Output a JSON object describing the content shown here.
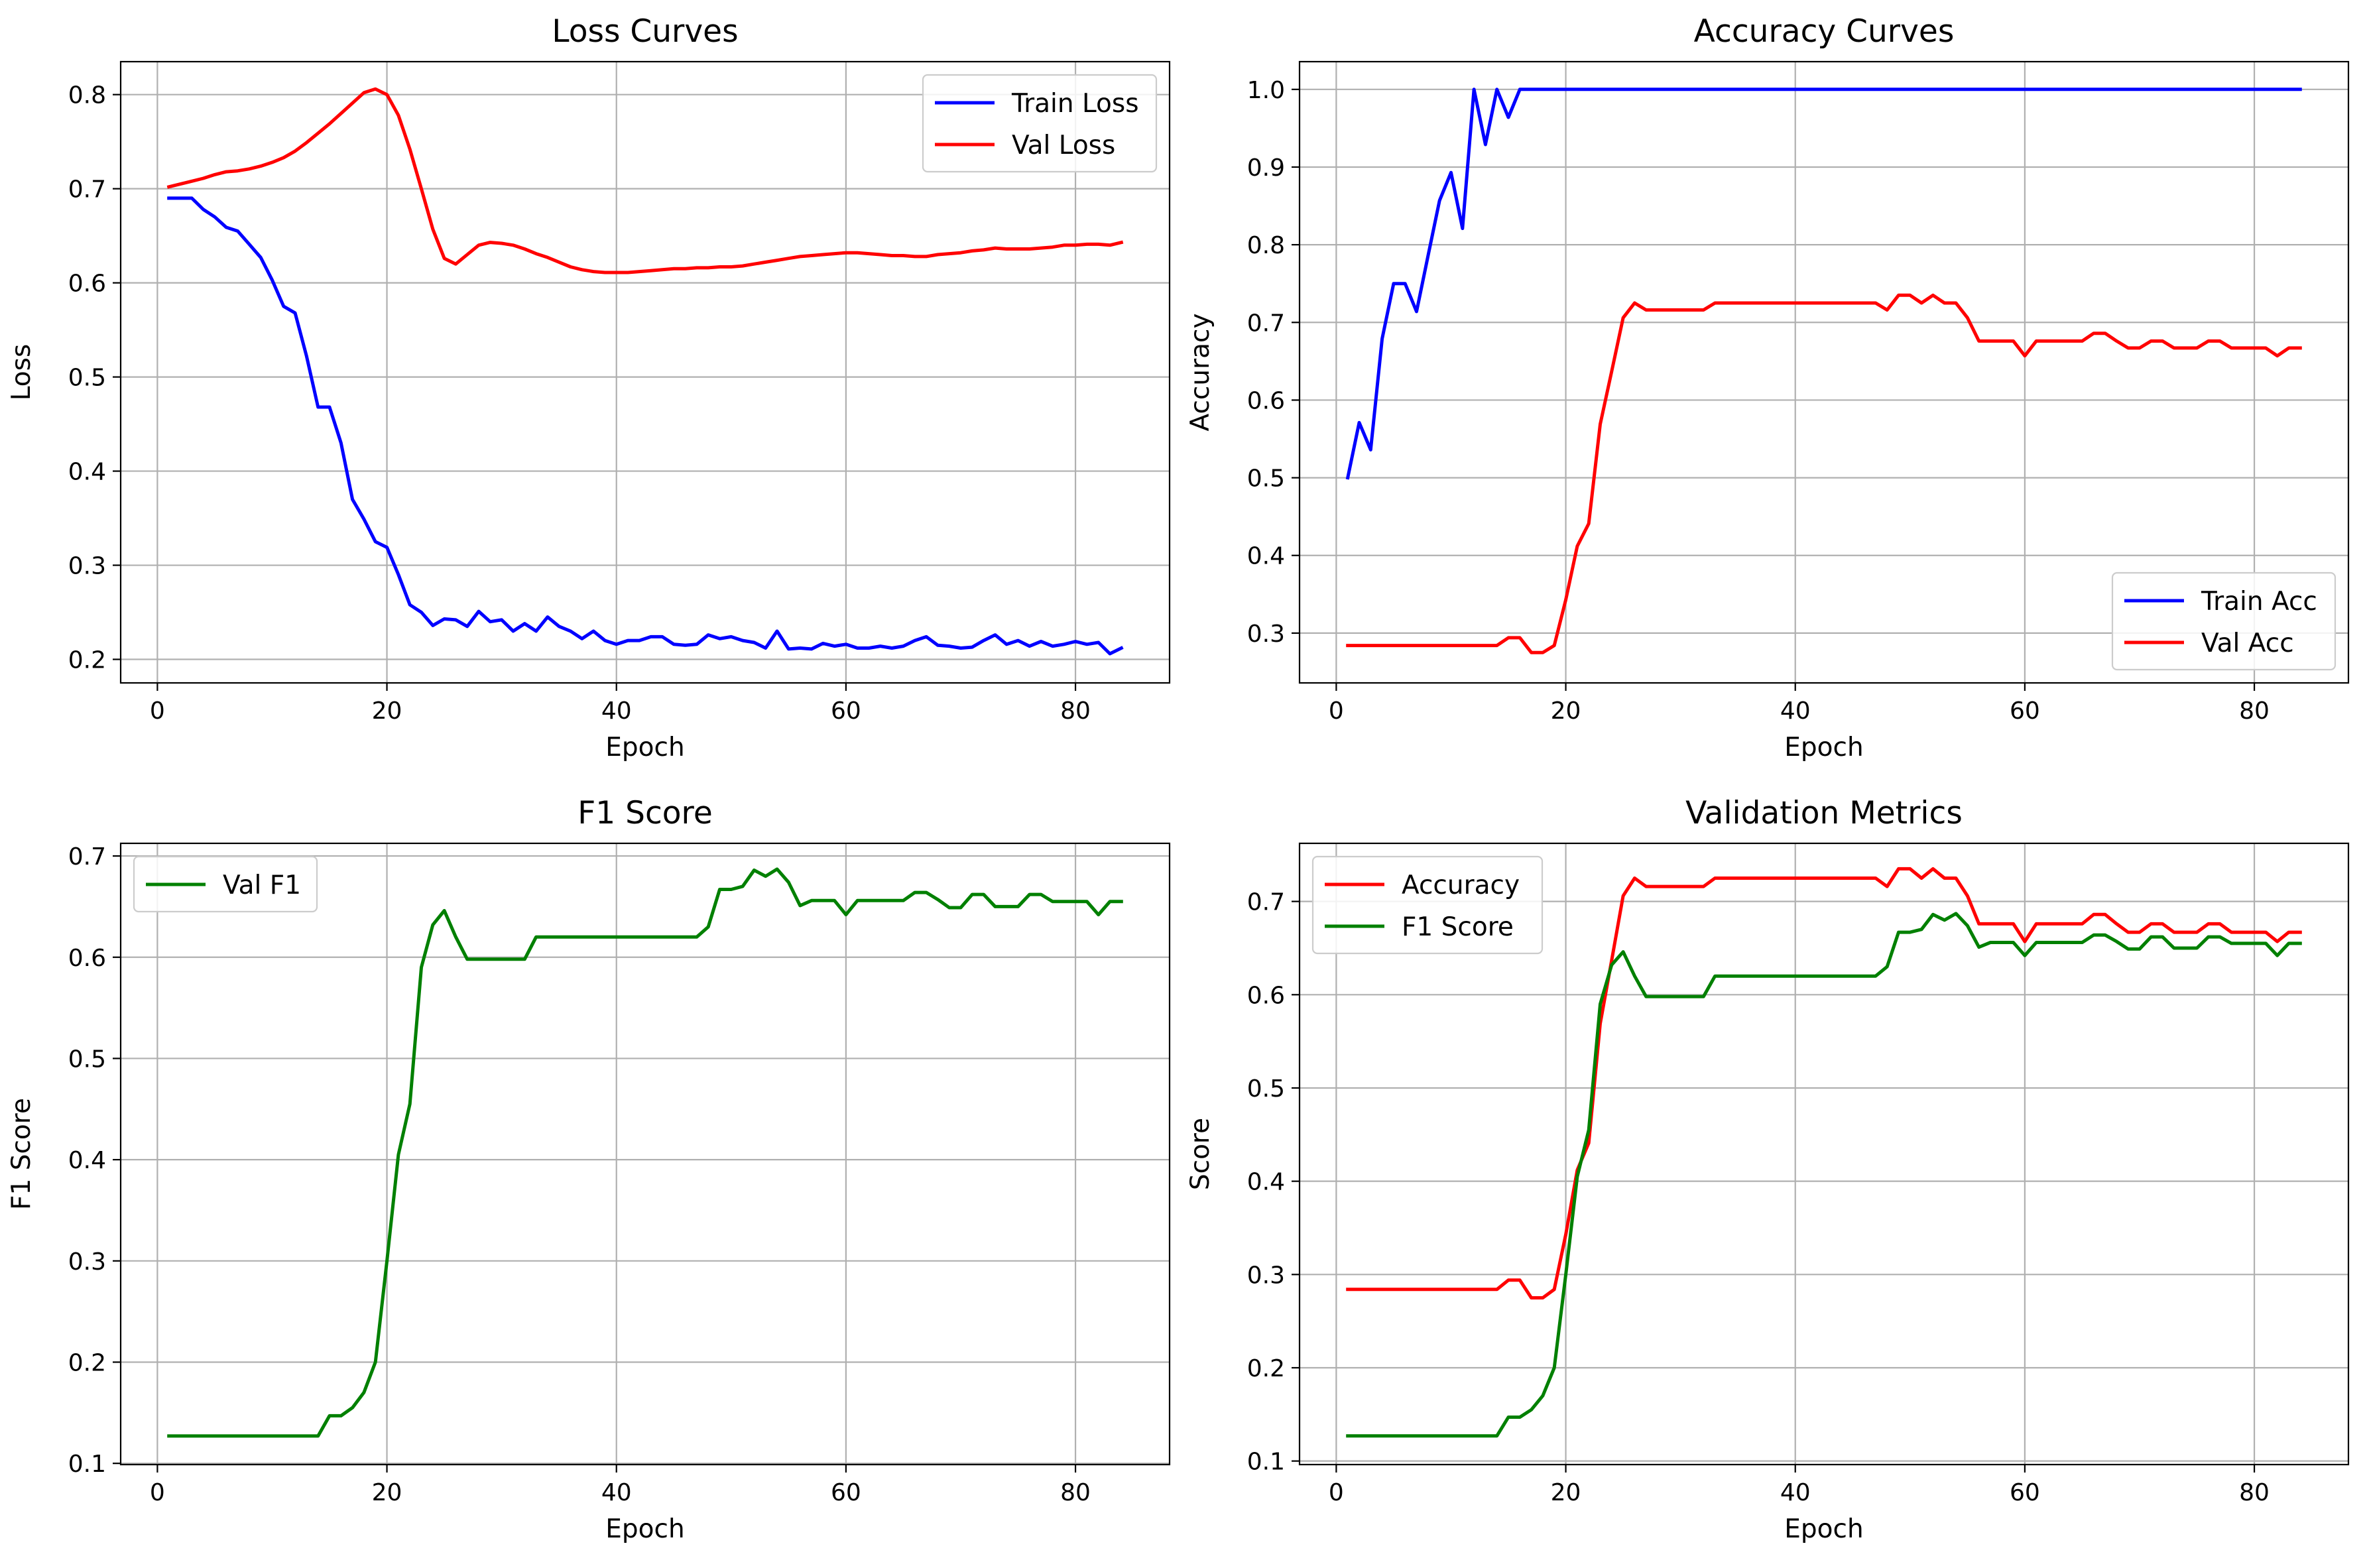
{
  "chart_data": [
    {
      "type": "line",
      "title": "Loss Curves",
      "xlabel": "Epoch",
      "ylabel": "Loss",
      "xlim": [
        -3.2,
        88.2
      ],
      "ylim": [
        0.175,
        0.835
      ],
      "xticks": [
        0,
        20,
        40,
        60,
        80
      ],
      "yticks": [
        0.2,
        0.3,
        0.4,
        0.5,
        0.6,
        0.7,
        0.8
      ],
      "ytick_labels": [
        "0.2",
        "0.3",
        "0.4",
        "0.5",
        "0.6",
        "0.7",
        "0.8"
      ],
      "grid": true,
      "legend_position": "top-right",
      "x_start": 1,
      "series": [
        {
          "name": "Train Loss",
          "color": "#0000ff",
          "values": [
            0.69,
            0.69,
            0.69,
            0.678,
            0.67,
            0.659,
            0.655,
            0.641,
            0.627,
            0.603,
            0.575,
            0.568,
            0.522,
            0.468,
            0.468,
            0.43,
            0.37,
            0.349,
            0.325,
            0.319,
            0.29,
            0.258,
            0.25,
            0.236,
            0.243,
            0.242,
            0.235,
            0.251,
            0.24,
            0.242,
            0.23,
            0.238,
            0.23,
            0.245,
            0.235,
            0.23,
            0.222,
            0.23,
            0.22,
            0.216,
            0.22,
            0.22,
            0.224,
            0.224,
            0.216,
            0.215,
            0.216,
            0.226,
            0.222,
            0.224,
            0.22,
            0.218,
            0.212,
            0.23,
            0.211,
            0.212,
            0.211,
            0.217,
            0.214,
            0.216,
            0.212,
            0.212,
            0.214,
            0.212,
            0.214,
            0.22,
            0.224,
            0.215,
            0.214,
            0.212,
            0.213,
            0.22,
            0.226,
            0.216,
            0.22,
            0.214,
            0.219,
            0.214,
            0.216,
            0.219,
            0.216,
            0.218,
            0.206,
            0.212
          ]
        },
        {
          "name": "Val Loss",
          "color": "#ff0000",
          "values": [
            0.702,
            0.705,
            0.708,
            0.711,
            0.715,
            0.718,
            0.719,
            0.721,
            0.724,
            0.728,
            0.733,
            0.74,
            0.749,
            0.759,
            0.769,
            0.78,
            0.791,
            0.802,
            0.806,
            0.8,
            0.778,
            0.742,
            0.7,
            0.657,
            0.626,
            0.62,
            0.63,
            0.64,
            0.643,
            0.642,
            0.64,
            0.636,
            0.631,
            0.627,
            0.622,
            0.617,
            0.614,
            0.612,
            0.611,
            0.611,
            0.611,
            0.612,
            0.613,
            0.614,
            0.615,
            0.615,
            0.616,
            0.616,
            0.617,
            0.617,
            0.618,
            0.62,
            0.622,
            0.624,
            0.626,
            0.628,
            0.629,
            0.63,
            0.631,
            0.632,
            0.632,
            0.631,
            0.63,
            0.629,
            0.629,
            0.628,
            0.628,
            0.63,
            0.631,
            0.632,
            0.634,
            0.635,
            0.637,
            0.636,
            0.636,
            0.636,
            0.637,
            0.638,
            0.64,
            0.64,
            0.641,
            0.641,
            0.64,
            0.643
          ]
        }
      ]
    },
    {
      "type": "line",
      "title": "Accuracy Curves",
      "xlabel": "Epoch",
      "ylabel": "Accuracy",
      "xlim": [
        -3.2,
        88.2
      ],
      "ylim": [
        0.2359,
        1.0357
      ],
      "xticks": [
        0,
        20,
        40,
        60,
        80
      ],
      "yticks": [
        0.3,
        0.4,
        0.5,
        0.6,
        0.7,
        0.8,
        0.9,
        1.0
      ],
      "ytick_labels": [
        "0.3",
        "0.4",
        "0.5",
        "0.6",
        "0.7",
        "0.8",
        "0.9",
        "1.0"
      ],
      "grid": true,
      "legend_position": "bottom-right",
      "x_start": 1,
      "series": [
        {
          "name": "Train Acc",
          "color": "#0000ff",
          "values": [
            0.5,
            0.571,
            0.536,
            0.679,
            0.75,
            0.75,
            0.714,
            0.786,
            0.857,
            0.893,
            0.821,
            1.0,
            0.929,
            1.0,
            0.964,
            1.0,
            1.0,
            1.0,
            1.0,
            1.0,
            1.0,
            1.0,
            1.0,
            1.0,
            1.0,
            1.0,
            1.0,
            1.0,
            1.0,
            1.0,
            1.0,
            1.0,
            1.0,
            1.0,
            1.0,
            1.0,
            1.0,
            1.0,
            1.0,
            1.0,
            1.0,
            1.0,
            1.0,
            1.0,
            1.0,
            1.0,
            1.0,
            1.0,
            1.0,
            1.0,
            1.0,
            1.0,
            1.0,
            1.0,
            1.0,
            1.0,
            1.0,
            1.0,
            1.0,
            1.0,
            1.0,
            1.0,
            1.0,
            1.0,
            1.0,
            1.0,
            1.0,
            1.0,
            1.0,
            1.0,
            1.0,
            1.0,
            1.0,
            1.0,
            1.0,
            1.0,
            1.0,
            1.0,
            1.0,
            1.0,
            1.0,
            1.0,
            1.0,
            1.0
          ]
        },
        {
          "name": "Val Acc",
          "color": "#ff0000",
          "values": [
            0.284,
            0.284,
            0.284,
            0.284,
            0.284,
            0.284,
            0.284,
            0.284,
            0.284,
            0.284,
            0.284,
            0.284,
            0.284,
            0.284,
            0.294,
            0.294,
            0.275,
            0.275,
            0.284,
            0.343,
            0.412,
            0.441,
            0.569,
            0.637,
            0.706,
            0.725,
            0.716,
            0.716,
            0.716,
            0.716,
            0.716,
            0.716,
            0.725,
            0.725,
            0.725,
            0.725,
            0.725,
            0.725,
            0.725,
            0.725,
            0.725,
            0.725,
            0.725,
            0.725,
            0.725,
            0.725,
            0.725,
            0.716,
            0.735,
            0.735,
            0.725,
            0.735,
            0.725,
            0.725,
            0.706,
            0.676,
            0.676,
            0.676,
            0.676,
            0.657,
            0.676,
            0.676,
            0.676,
            0.676,
            0.676,
            0.686,
            0.686,
            0.676,
            0.667,
            0.667,
            0.676,
            0.676,
            0.667,
            0.667,
            0.667,
            0.676,
            0.676,
            0.667,
            0.667,
            0.667,
            0.667,
            0.657,
            0.667,
            0.667
          ]
        }
      ]
    },
    {
      "type": "line",
      "title": "F1 Score",
      "xlabel": "Epoch",
      "ylabel": "F1 Score",
      "xlim": [
        -3.2,
        88.2
      ],
      "ylim": [
        0.0988,
        0.7125
      ],
      "xticks": [
        0,
        20,
        40,
        60,
        80
      ],
      "yticks": [
        0.1,
        0.2,
        0.3,
        0.4,
        0.5,
        0.6,
        0.7
      ],
      "ytick_labels": [
        "0.1",
        "0.2",
        "0.3",
        "0.4",
        "0.5",
        "0.6",
        "0.7"
      ],
      "grid": true,
      "legend_position": "top-left",
      "x_start": 1,
      "series": [
        {
          "name": "Val F1",
          "color": "#008000",
          "values": [
            0.127,
            0.127,
            0.127,
            0.127,
            0.127,
            0.127,
            0.127,
            0.127,
            0.127,
            0.127,
            0.127,
            0.127,
            0.127,
            0.127,
            0.147,
            0.147,
            0.155,
            0.17,
            0.2,
            0.3,
            0.405,
            0.455,
            0.59,
            0.632,
            0.646,
            0.62,
            0.598,
            0.598,
            0.598,
            0.598,
            0.598,
            0.598,
            0.62,
            0.62,
            0.62,
            0.62,
            0.62,
            0.62,
            0.62,
            0.62,
            0.62,
            0.62,
            0.62,
            0.62,
            0.62,
            0.62,
            0.62,
            0.63,
            0.667,
            0.667,
            0.67,
            0.686,
            0.68,
            0.687,
            0.674,
            0.651,
            0.656,
            0.656,
            0.656,
            0.642,
            0.656,
            0.656,
            0.656,
            0.656,
            0.656,
            0.664,
            0.664,
            0.657,
            0.649,
            0.649,
            0.662,
            0.662,
            0.65,
            0.65,
            0.65,
            0.662,
            0.662,
            0.655,
            0.655,
            0.655,
            0.655,
            0.642,
            0.655,
            0.655
          ]
        }
      ]
    },
    {
      "type": "line",
      "title": "Validation Metrics",
      "xlabel": "Epoch",
      "ylabel": "Score",
      "xlim": [
        -3.2,
        88.2
      ],
      "ylim": [
        0.0962,
        0.7623
      ],
      "xticks": [
        0,
        20,
        40,
        60,
        80
      ],
      "yticks": [
        0.1,
        0.2,
        0.3,
        0.4,
        0.5,
        0.6,
        0.7
      ],
      "ytick_labels": [
        "0.1",
        "0.2",
        "0.3",
        "0.4",
        "0.5",
        "0.6",
        "0.7"
      ],
      "grid": true,
      "legend_position": "top-left",
      "x_start": 1,
      "series": [
        {
          "name": "Accuracy",
          "color": "#ff0000",
          "values": [
            0.284,
            0.284,
            0.284,
            0.284,
            0.284,
            0.284,
            0.284,
            0.284,
            0.284,
            0.284,
            0.284,
            0.284,
            0.284,
            0.284,
            0.294,
            0.294,
            0.275,
            0.275,
            0.284,
            0.343,
            0.412,
            0.441,
            0.569,
            0.637,
            0.706,
            0.725,
            0.716,
            0.716,
            0.716,
            0.716,
            0.716,
            0.716,
            0.725,
            0.725,
            0.725,
            0.725,
            0.725,
            0.725,
            0.725,
            0.725,
            0.725,
            0.725,
            0.725,
            0.725,
            0.725,
            0.725,
            0.725,
            0.716,
            0.735,
            0.735,
            0.725,
            0.735,
            0.725,
            0.725,
            0.706,
            0.676,
            0.676,
            0.676,
            0.676,
            0.657,
            0.676,
            0.676,
            0.676,
            0.676,
            0.676,
            0.686,
            0.686,
            0.676,
            0.667,
            0.667,
            0.676,
            0.676,
            0.667,
            0.667,
            0.667,
            0.676,
            0.676,
            0.667,
            0.667,
            0.667,
            0.667,
            0.657,
            0.667,
            0.667
          ]
        },
        {
          "name": "F1 Score",
          "color": "#008000",
          "values": [
            0.127,
            0.127,
            0.127,
            0.127,
            0.127,
            0.127,
            0.127,
            0.127,
            0.127,
            0.127,
            0.127,
            0.127,
            0.127,
            0.127,
            0.147,
            0.147,
            0.155,
            0.17,
            0.2,
            0.3,
            0.405,
            0.455,
            0.59,
            0.632,
            0.646,
            0.62,
            0.598,
            0.598,
            0.598,
            0.598,
            0.598,
            0.598,
            0.62,
            0.62,
            0.62,
            0.62,
            0.62,
            0.62,
            0.62,
            0.62,
            0.62,
            0.62,
            0.62,
            0.62,
            0.62,
            0.62,
            0.62,
            0.63,
            0.667,
            0.667,
            0.67,
            0.686,
            0.68,
            0.687,
            0.674,
            0.651,
            0.656,
            0.656,
            0.656,
            0.642,
            0.656,
            0.656,
            0.656,
            0.656,
            0.656,
            0.664,
            0.664,
            0.657,
            0.649,
            0.649,
            0.662,
            0.662,
            0.65,
            0.65,
            0.65,
            0.662,
            0.662,
            0.655,
            0.655,
            0.655,
            0.655,
            0.642,
            0.655,
            0.655
          ]
        }
      ]
    }
  ]
}
